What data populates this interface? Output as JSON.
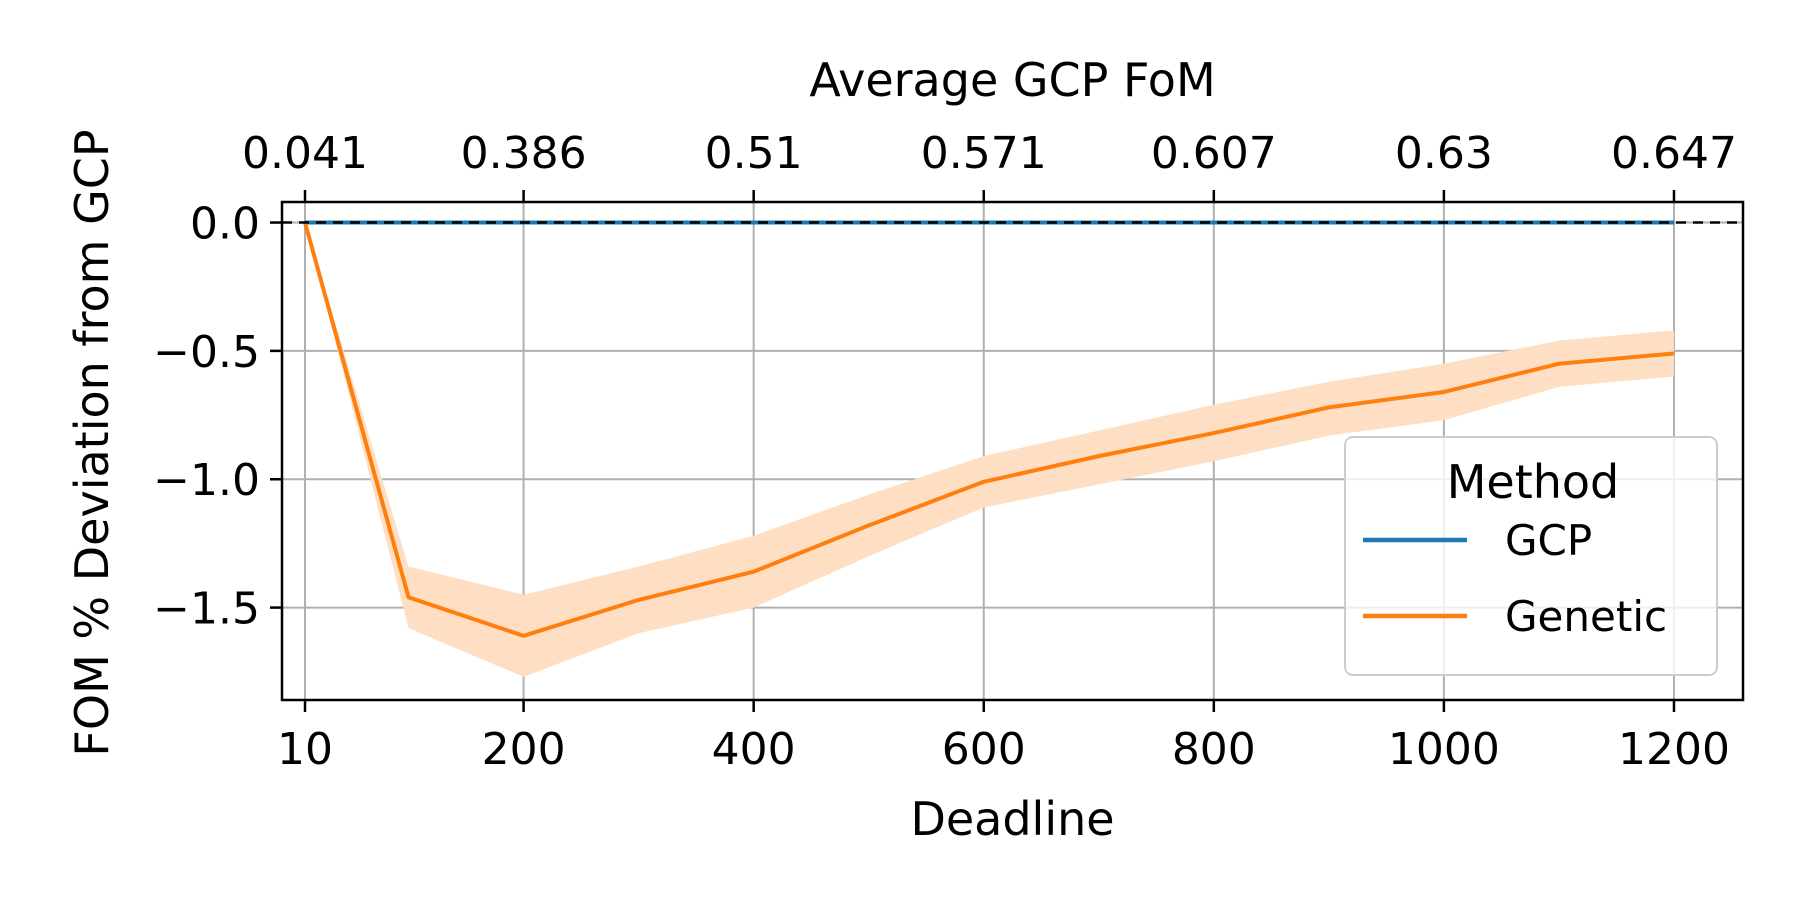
{
  "chart_data": {
    "type": "line",
    "xlabel": "Deadline",
    "ylabel": "FOM % Deviation from GCP",
    "top_xlabel": "Average GCP FoM",
    "xlim": [
      -10,
      1260
    ],
    "ylim": [
      -1.86,
      0.08
    ],
    "x_ticks": [
      10,
      200,
      400,
      600,
      800,
      1000,
      1200
    ],
    "x_tick_labels": [
      "10",
      "200",
      "400",
      "600",
      "800",
      "1000",
      "1200"
    ],
    "y_ticks": [
      0.0,
      -0.5,
      -1.0,
      -1.5
    ],
    "y_tick_labels": [
      "0.0",
      "−0.5",
      "−1.0",
      "−1.5"
    ],
    "top_x_ticks": [
      10,
      200,
      400,
      600,
      800,
      1000,
      1200
    ],
    "top_x_tick_labels": [
      "0.041",
      "0.386",
      "0.51",
      "0.571",
      "0.607",
      "0.63",
      "0.647"
    ],
    "grid": true,
    "reference_line": {
      "y": 0,
      "style": "dashed",
      "color": "#000000"
    },
    "legend": {
      "title": "Method",
      "position": "right"
    },
    "series": [
      {
        "name": "GCP",
        "color": "#1f77b4",
        "x": [
          10,
          100,
          200,
          300,
          400,
          500,
          600,
          700,
          800,
          900,
          1000,
          1100,
          1200
        ],
        "y": [
          0,
          0,
          0,
          0,
          0,
          0,
          0,
          0,
          0,
          0,
          0,
          0,
          0
        ]
      },
      {
        "name": "Genetic",
        "color": "#ff7f0e",
        "band_color": "#ffdfc4",
        "x": [
          10,
          100,
          200,
          300,
          400,
          500,
          600,
          700,
          800,
          900,
          1000,
          1100,
          1200
        ],
        "y": [
          0.0,
          -1.46,
          -1.61,
          -1.47,
          -1.36,
          -1.18,
          -1.01,
          -0.91,
          -0.82,
          -0.72,
          -0.66,
          -0.55,
          -0.51
        ],
        "y_lower": [
          0.0,
          -1.58,
          -1.77,
          -1.6,
          -1.5,
          -1.3,
          -1.11,
          -1.02,
          -0.93,
          -0.83,
          -0.77,
          -0.64,
          -0.6
        ],
        "y_upper": [
          0.0,
          -1.34,
          -1.45,
          -1.34,
          -1.22,
          -1.06,
          -0.91,
          -0.81,
          -0.71,
          -0.62,
          -0.55,
          -0.46,
          -0.42
        ]
      }
    ]
  }
}
